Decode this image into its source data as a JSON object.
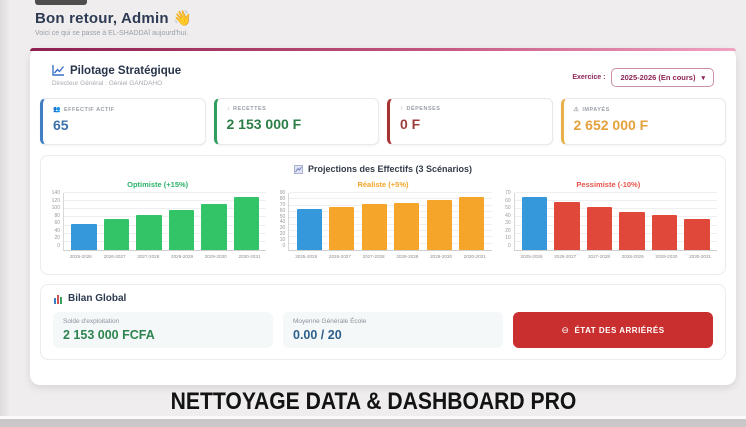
{
  "header": {
    "title": "Bon retour, Admin",
    "wave_icon": "👋",
    "subtitle": "Voici ce qui se passe à EL-SHADDAÏ aujourd'hui."
  },
  "pilotage": {
    "title": "Pilotage Stratégique",
    "subtitle": "Directeur Général : Géniel GANDAHO",
    "exercice_label": "Exercice :",
    "exercice_value": "2025-2026 (En cours)",
    "chevron": "▾"
  },
  "stats": [
    {
      "icon": "👥",
      "label": "EFFECTIF ACTIF",
      "value": "65",
      "color": "#3f7ec1",
      "value_color": "#3d72aa"
    },
    {
      "icon": "↓",
      "label": "RECETTES",
      "value": "2 153 000 F",
      "color": "#2f9e5f",
      "value_color": "#2d7d46"
    },
    {
      "icon": "↑",
      "label": "DÉPENSES",
      "value": "0 F",
      "color": "#a83232",
      "value_color": "#9e3c3c"
    },
    {
      "icon": "⚠",
      "label": "IMPAYÉS",
      "value": "2 652 000 F",
      "color": "#e8b04a",
      "value_color": "#e3a13c"
    }
  ],
  "projections": {
    "title": "Projections des Effectifs (3 Scénarios)"
  },
  "chart_data": [
    {
      "type": "bar",
      "title": "Optimiste (+15%)",
      "title_color": "#2db36a",
      "categories": [
        "2025-2026",
        "2026-2027",
        "2027-2028",
        "2028-2029",
        "2029-2030",
        "2030-2031"
      ],
      "values": [
        65,
        75,
        86,
        99,
        114,
        131
      ],
      "ylim": [
        0,
        140
      ],
      "ytick_step": 20,
      "first_bar_color": "#3598db",
      "bar_color": "#33c468",
      "grid": true,
      "legend": "none"
    },
    {
      "type": "bar",
      "title": "Réaliste (+5%)",
      "title_color": "#f5a62a",
      "categories": [
        "2025-2026",
        "2026-2027",
        "2027-2028",
        "2028-2029",
        "2029-2030",
        "2030-2031"
      ],
      "values": [
        65,
        68,
        72,
        75,
        79,
        83
      ],
      "ylim": [
        0,
        90
      ],
      "ytick_step": 10,
      "first_bar_color": "#3598db",
      "bar_color": "#f5a62a",
      "grid": true,
      "legend": "none"
    },
    {
      "type": "bar",
      "title": "Pessimiste (-10%)",
      "title_color": "#e8534a",
      "categories": [
        "2025-2026",
        "2026-2027",
        "2027-2028",
        "2028-2029",
        "2029-2030",
        "2030-2031"
      ],
      "values": [
        65,
        59,
        53,
        47,
        43,
        38
      ],
      "ylim": [
        0,
        70
      ],
      "ytick_step": 10,
      "first_bar_color": "#3598db",
      "bar_color": "#e0493a",
      "grid": true,
      "legend": "none"
    }
  ],
  "bilan": {
    "title": "Bilan Global",
    "items": [
      {
        "label": "Solde d'exploitation",
        "value": "2 153 000 FCFA",
        "color": "#2d8450"
      },
      {
        "label": "Moyenne Générale École",
        "value": "0.00 / 20",
        "color": "#2c5f8a"
      }
    ],
    "button_icon": "⊖",
    "button_label": "ÉTAT DES ARRIÉRÉS"
  },
  "footer": {
    "caption": "NETTOYAGE DATA & DASHBOARD PRO"
  }
}
